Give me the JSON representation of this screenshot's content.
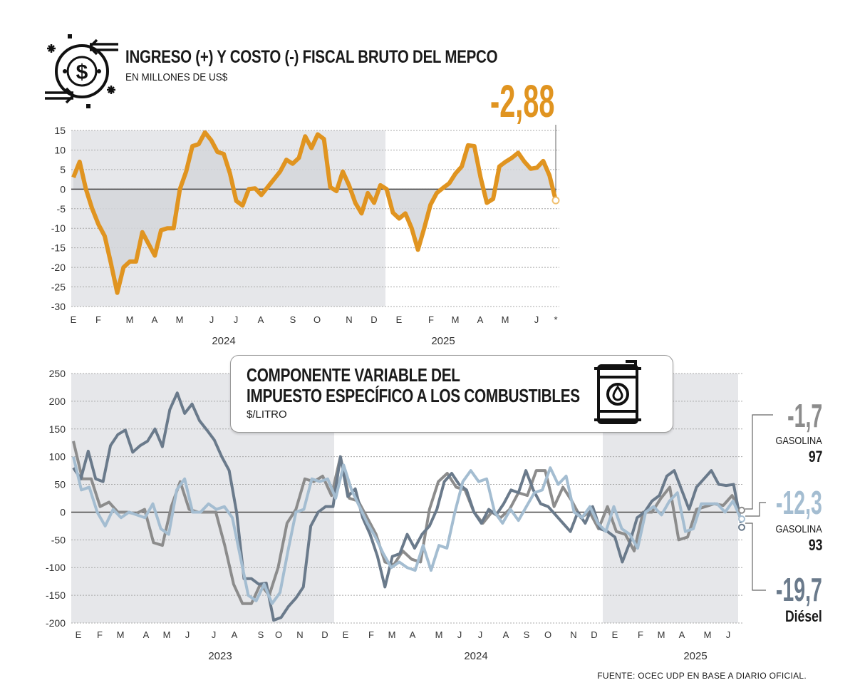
{
  "colors": {
    "orange": "#e09420",
    "gas97": "#8c8c8c",
    "gas93": "#a4bdd1",
    "diesel": "#6a7a8b",
    "shade": "#e6e7ea",
    "area": "#d3d6da"
  },
  "icons": {
    "header": "money-exchange-icon",
    "box": "fuel-barrel-icon"
  },
  "chart_data": [
    {
      "type": "area",
      "title": "INGRESO (+) Y COSTO (-) FISCAL BRUTO DEL MEPCO",
      "subtitle": "EN MILLONES DE US$",
      "highlight_value": "-2,88",
      "ylim": [
        -30,
        15
      ],
      "yticks": [
        "15",
        "10",
        "5",
        "0",
        "-5",
        "-10",
        "-15",
        "-20",
        "-25",
        "-30"
      ],
      "ytick_values": [
        15,
        10,
        5,
        0,
        -5,
        -10,
        -15,
        -20,
        -25,
        -30
      ],
      "month_labels": [
        "E",
        "F",
        "M",
        "A",
        "M",
        "J",
        "J",
        "A",
        "S",
        "O",
        "N",
        "D",
        "E",
        "F",
        "M",
        "A",
        "M",
        "J",
        "*"
      ],
      "years": [
        "2024",
        "2025"
      ],
      "grid": true,
      "series": [
        {
          "name": "Ingreso/costo fiscal",
          "values": [
            3,
            7,
            0,
            -5,
            -9,
            -12,
            -19,
            -26.5,
            -20,
            -18.5,
            -18.5,
            -11,
            -14,
            -17,
            -10.5,
            -10,
            -10,
            0,
            4.5,
            11,
            11.5,
            14.5,
            12.5,
            9.5,
            9,
            4,
            -3,
            -4.2,
            0,
            0.2,
            -1.5,
            0.5,
            2.5,
            4.5,
            7.5,
            6.5,
            8,
            13.5,
            10.5,
            14,
            12.8,
            0.5,
            -0.5,
            4.5,
            1,
            -3.5,
            -6.2,
            -1,
            -3.5,
            1,
            0,
            -6,
            -7.5,
            -6.2,
            -10,
            -15.5,
            -10,
            -4,
            -1,
            0.3,
            1.5,
            4,
            5.8,
            11.2,
            11,
            3,
            -3.5,
            -2.5,
            5.8,
            7,
            8,
            9.3,
            7,
            5.2,
            5.5,
            7.2,
            3.5,
            -2.88
          ]
        }
      ]
    },
    {
      "type": "line",
      "title_line1": "COMPONENTE VARIABLE DEL",
      "title_line2": "IMPUESTO ESPECÍFICO A LOS COMBUSTIBLES",
      "unit": "$/LITRO",
      "ylim": [
        -200,
        250
      ],
      "yticks": [
        "250",
        "200",
        "150",
        "100",
        "50",
        "0",
        "-50",
        "-100",
        "-150",
        "-200"
      ],
      "ytick_values": [
        250,
        200,
        150,
        100,
        50,
        0,
        -50,
        -100,
        -150,
        -200
      ],
      "month_labels": [
        "E",
        "F",
        "M",
        "A",
        "M",
        "J",
        "J",
        "A",
        "S",
        "O",
        "N",
        "D",
        "E",
        "F",
        "M",
        "A",
        "M",
        "J",
        "J",
        "A",
        "S",
        "O",
        "N",
        "D",
        "E",
        "F",
        "M",
        "A",
        "M",
        "J"
      ],
      "years": [
        "2023",
        "2024",
        "2025"
      ],
      "grid": true,
      "series": [
        {
          "name": "Gasolina 97",
          "label1": "GASOLINA",
          "label2": "97",
          "last": "-1,7",
          "values": [
            128,
            60,
            60,
            10,
            18,
            0,
            0,
            -3,
            5,
            -55,
            -60,
            10,
            55,
            5,
            0,
            0,
            0,
            -60,
            -130,
            -165,
            -165,
            -130,
            -150,
            -100,
            -20,
            5,
            60,
            55,
            65,
            30,
            100,
            25,
            20,
            -10,
            -40,
            -90,
            -95,
            -70,
            -85,
            -90,
            5,
            55,
            70,
            45,
            40,
            0,
            -20,
            0,
            -10,
            5,
            35,
            30,
            75,
            75,
            10,
            45,
            20,
            -10,
            0,
            -30,
            10,
            -35,
            -40,
            -70,
            0,
            0,
            25,
            45,
            -50,
            -45,
            5,
            10,
            15,
            12,
            30,
            -1.7
          ]
        },
        {
          "name": "Gasolina 93",
          "label1": "GASOLINA",
          "label2": "93",
          "last": "-12,3",
          "values": [
            100,
            40,
            45,
            0,
            -25,
            5,
            -10,
            0,
            -5,
            -10,
            15,
            -30,
            -40,
            40,
            60,
            0,
            0,
            15,
            5,
            10,
            -10,
            -80,
            -150,
            -160,
            -130,
            -165,
            -145,
            -70,
            0,
            5,
            60,
            55,
            60,
            25,
            85,
            40,
            10,
            -20,
            -45,
            -75,
            -100,
            -90,
            -100,
            -105,
            -60,
            -105,
            -60,
            -65,
            0,
            55,
            75,
            55,
            60,
            0,
            -20,
            5,
            -15,
            10,
            35,
            40,
            80,
            50,
            65,
            0,
            -10,
            10,
            -20,
            -35,
            10,
            -30,
            -40,
            -65,
            0,
            10,
            -5,
            20,
            35,
            -35,
            -30,
            15,
            15,
            15,
            0,
            20,
            -12.3
          ]
        },
        {
          "name": "Diésel",
          "label1": "Diésel",
          "last": "-19,7",
          "values": [
            80,
            60,
            110,
            60,
            55,
            120,
            140,
            148,
            108,
            120,
            128,
            150,
            118,
            185,
            215,
            178,
            195,
            165,
            148,
            130,
            100,
            75,
            0,
            -120,
            -120,
            -130,
            -128,
            -195,
            -190,
            -170,
            -155,
            -135,
            -25,
            0,
            10,
            10,
            100,
            28,
            42,
            -10,
            -40,
            -80,
            -135,
            -80,
            -75,
            -40,
            -65,
            -40,
            -25,
            5,
            55,
            70,
            50,
            40,
            0,
            -20,
            5,
            -5,
            15,
            40,
            35,
            75,
            40,
            15,
            10,
            -5,
            -20,
            -35,
            0,
            -20,
            10,
            -30,
            -35,
            -45,
            -90,
            -55,
            -10,
            0,
            20,
            30,
            65,
            75,
            40,
            5,
            45,
            60,
            75,
            50,
            48,
            50,
            -19.7
          ]
        }
      ]
    }
  ],
  "source": "FUENTE: OCEC UDP EN BASE A DIARIO OFICIAL."
}
